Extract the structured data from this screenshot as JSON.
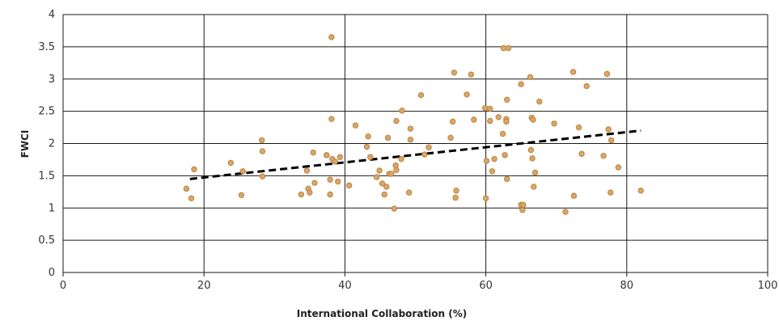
{
  "chart_data": {
    "type": "scatter",
    "title": "",
    "xlabel": "International Collaboration (%)",
    "ylabel": "FWCI",
    "xlim": [
      0,
      100
    ],
    "ylim": [
      0,
      4
    ],
    "x_ticks": [
      0,
      20,
      40,
      60,
      80,
      100
    ],
    "x_tick_labels": [
      "0",
      "20",
      "40",
      "60",
      "80",
      "100"
    ],
    "y_ticks": [
      0,
      0.5,
      1,
      1.5,
      2,
      2.5,
      3,
      3.5,
      4
    ],
    "y_tick_labels": [
      "0",
      "0.5",
      "1",
      "1.5",
      "2",
      "2.5",
      "3",
      "3.5",
      "4"
    ],
    "grid": "on",
    "point_color": "#d9a867",
    "trendline": {
      "style": "dashed",
      "color": "#000000",
      "x": [
        18,
        82
      ],
      "y": [
        1.45,
        2.2
      ]
    },
    "points": [
      {
        "x": 17.5,
        "y": 1.3
      },
      {
        "x": 18.2,
        "y": 1.15
      },
      {
        "x": 18.6,
        "y": 1.6
      },
      {
        "x": 23.8,
        "y": 1.7
      },
      {
        "x": 25.3,
        "y": 1.2
      },
      {
        "x": 25.5,
        "y": 1.57
      },
      {
        "x": 28.2,
        "y": 2.05
      },
      {
        "x": 28.3,
        "y": 1.88
      },
      {
        "x": 28.3,
        "y": 1.49
      },
      {
        "x": 33.8,
        "y": 1.21
      },
      {
        "x": 34.6,
        "y": 1.58
      },
      {
        "x": 34.8,
        "y": 1.3
      },
      {
        "x": 35.0,
        "y": 1.24
      },
      {
        "x": 35.5,
        "y": 1.86
      },
      {
        "x": 35.7,
        "y": 1.39
      },
      {
        "x": 37.4,
        "y": 1.82
      },
      {
        "x": 37.9,
        "y": 1.44
      },
      {
        "x": 37.9,
        "y": 1.21
      },
      {
        "x": 38.1,
        "y": 3.65
      },
      {
        "x": 38.1,
        "y": 2.38
      },
      {
        "x": 38.2,
        "y": 1.76
      },
      {
        "x": 38.6,
        "y": 1.72
      },
      {
        "x": 39.0,
        "y": 1.41
      },
      {
        "x": 39.3,
        "y": 1.79
      },
      {
        "x": 40.6,
        "y": 1.35
      },
      {
        "x": 41.5,
        "y": 2.28
      },
      {
        "x": 43.1,
        "y": 1.95
      },
      {
        "x": 43.3,
        "y": 2.11
      },
      {
        "x": 43.6,
        "y": 1.79
      },
      {
        "x": 44.5,
        "y": 1.48
      },
      {
        "x": 44.9,
        "y": 1.58
      },
      {
        "x": 45.3,
        "y": 1.38
      },
      {
        "x": 45.6,
        "y": 1.21
      },
      {
        "x": 45.9,
        "y": 1.33
      },
      {
        "x": 46.1,
        "y": 2.09
      },
      {
        "x": 46.3,
        "y": 1.53
      },
      {
        "x": 46.6,
        "y": 1.53
      },
      {
        "x": 47.0,
        "y": 0.99
      },
      {
        "x": 47.2,
        "y": 1.66
      },
      {
        "x": 47.3,
        "y": 2.35
      },
      {
        "x": 47.3,
        "y": 1.59
      },
      {
        "x": 48.0,
        "y": 1.76
      },
      {
        "x": 48.1,
        "y": 2.51
      },
      {
        "x": 49.1,
        "y": 1.24
      },
      {
        "x": 49.3,
        "y": 2.06
      },
      {
        "x": 49.3,
        "y": 2.23
      },
      {
        "x": 50.8,
        "y": 2.75
      },
      {
        "x": 51.3,
        "y": 1.83
      },
      {
        "x": 51.9,
        "y": 1.94
      },
      {
        "x": 55.0,
        "y": 2.09
      },
      {
        "x": 55.3,
        "y": 2.34
      },
      {
        "x": 55.5,
        "y": 3.1
      },
      {
        "x": 55.7,
        "y": 1.16
      },
      {
        "x": 55.8,
        "y": 1.27
      },
      {
        "x": 57.3,
        "y": 2.76
      },
      {
        "x": 57.9,
        "y": 3.07
      },
      {
        "x": 58.3,
        "y": 2.37
      },
      {
        "x": 59.9,
        "y": 2.55
      },
      {
        "x": 60.0,
        "y": 1.15
      },
      {
        "x": 60.1,
        "y": 1.73
      },
      {
        "x": 60.6,
        "y": 2.54
      },
      {
        "x": 60.6,
        "y": 2.35
      },
      {
        "x": 60.9,
        "y": 1.57
      },
      {
        "x": 61.2,
        "y": 1.76
      },
      {
        "x": 61.8,
        "y": 2.41
      },
      {
        "x": 62.4,
        "y": 2.15
      },
      {
        "x": 62.5,
        "y": 3.48
      },
      {
        "x": 62.7,
        "y": 1.82
      },
      {
        "x": 62.9,
        "y": 2.38
      },
      {
        "x": 62.9,
        "y": 2.34
      },
      {
        "x": 63.0,
        "y": 2.68
      },
      {
        "x": 63.0,
        "y": 1.45
      },
      {
        "x": 63.2,
        "y": 3.48
      },
      {
        "x": 65.0,
        "y": 2.92
      },
      {
        "x": 65.0,
        "y": 1.05
      },
      {
        "x": 65.2,
        "y": 0.97
      },
      {
        "x": 65.3,
        "y": 1.05
      },
      {
        "x": 66.3,
        "y": 3.03
      },
      {
        "x": 66.4,
        "y": 1.9
      },
      {
        "x": 66.5,
        "y": 2.4
      },
      {
        "x": 66.6,
        "y": 1.77
      },
      {
        "x": 66.7,
        "y": 2.37
      },
      {
        "x": 66.8,
        "y": 1.33
      },
      {
        "x": 67.0,
        "y": 1.55
      },
      {
        "x": 67.6,
        "y": 2.65
      },
      {
        "x": 69.7,
        "y": 2.31
      },
      {
        "x": 71.3,
        "y": 0.94
      },
      {
        "x": 72.4,
        "y": 3.11
      },
      {
        "x": 72.5,
        "y": 1.19
      },
      {
        "x": 73.2,
        "y": 2.25
      },
      {
        "x": 73.6,
        "y": 1.84
      },
      {
        "x": 74.3,
        "y": 2.89
      },
      {
        "x": 76.7,
        "y": 1.81
      },
      {
        "x": 77.2,
        "y": 3.08
      },
      {
        "x": 77.4,
        "y": 2.22
      },
      {
        "x": 77.7,
        "y": 1.24
      },
      {
        "x": 77.8,
        "y": 2.05
      },
      {
        "x": 78.8,
        "y": 1.63
      },
      {
        "x": 82.0,
        "y": 1.27
      }
    ]
  }
}
